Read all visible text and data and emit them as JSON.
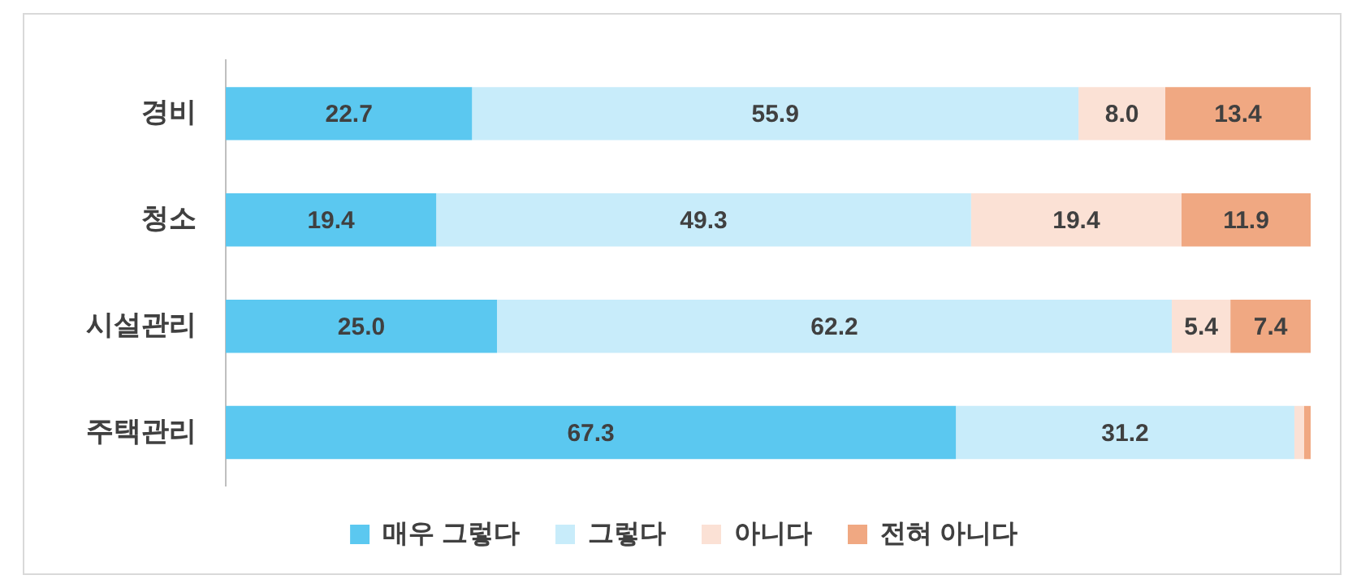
{
  "chart_data": {
    "type": "bar",
    "orientation": "horizontal",
    "stacked": true,
    "categories": [
      "경비",
      "청소",
      "시설관리",
      "주택관리"
    ],
    "xlim": [
      0,
      100
    ],
    "series": [
      {
        "name": "매우 그렇다",
        "color": "#5bc8f0",
        "values": [
          22.7,
          19.4,
          25.0,
          67.3
        ],
        "value_labels": [
          "22.7",
          "19.4",
          "25.0",
          "67.3"
        ]
      },
      {
        "name": "그렇다",
        "color": "#c8ecfa",
        "values": [
          55.9,
          49.3,
          62.2,
          31.2
        ],
        "value_labels": [
          "55.9",
          "49.3",
          "62.2",
          "31.2"
        ]
      },
      {
        "name": "아니다",
        "color": "#fbe1d5",
        "values": [
          8.0,
          19.4,
          5.4,
          0.9
        ],
        "value_labels": [
          "8.0",
          "19.4",
          "5.4",
          null
        ]
      },
      {
        "name": "전혀 아니다",
        "color": "#f0a882",
        "values": [
          13.4,
          11.9,
          7.4,
          0.6
        ],
        "value_labels": [
          "13.4",
          "11.9",
          "7.4",
          null
        ]
      }
    ],
    "grid": false,
    "legend": "bottom",
    "tick_labels": "y"
  }
}
